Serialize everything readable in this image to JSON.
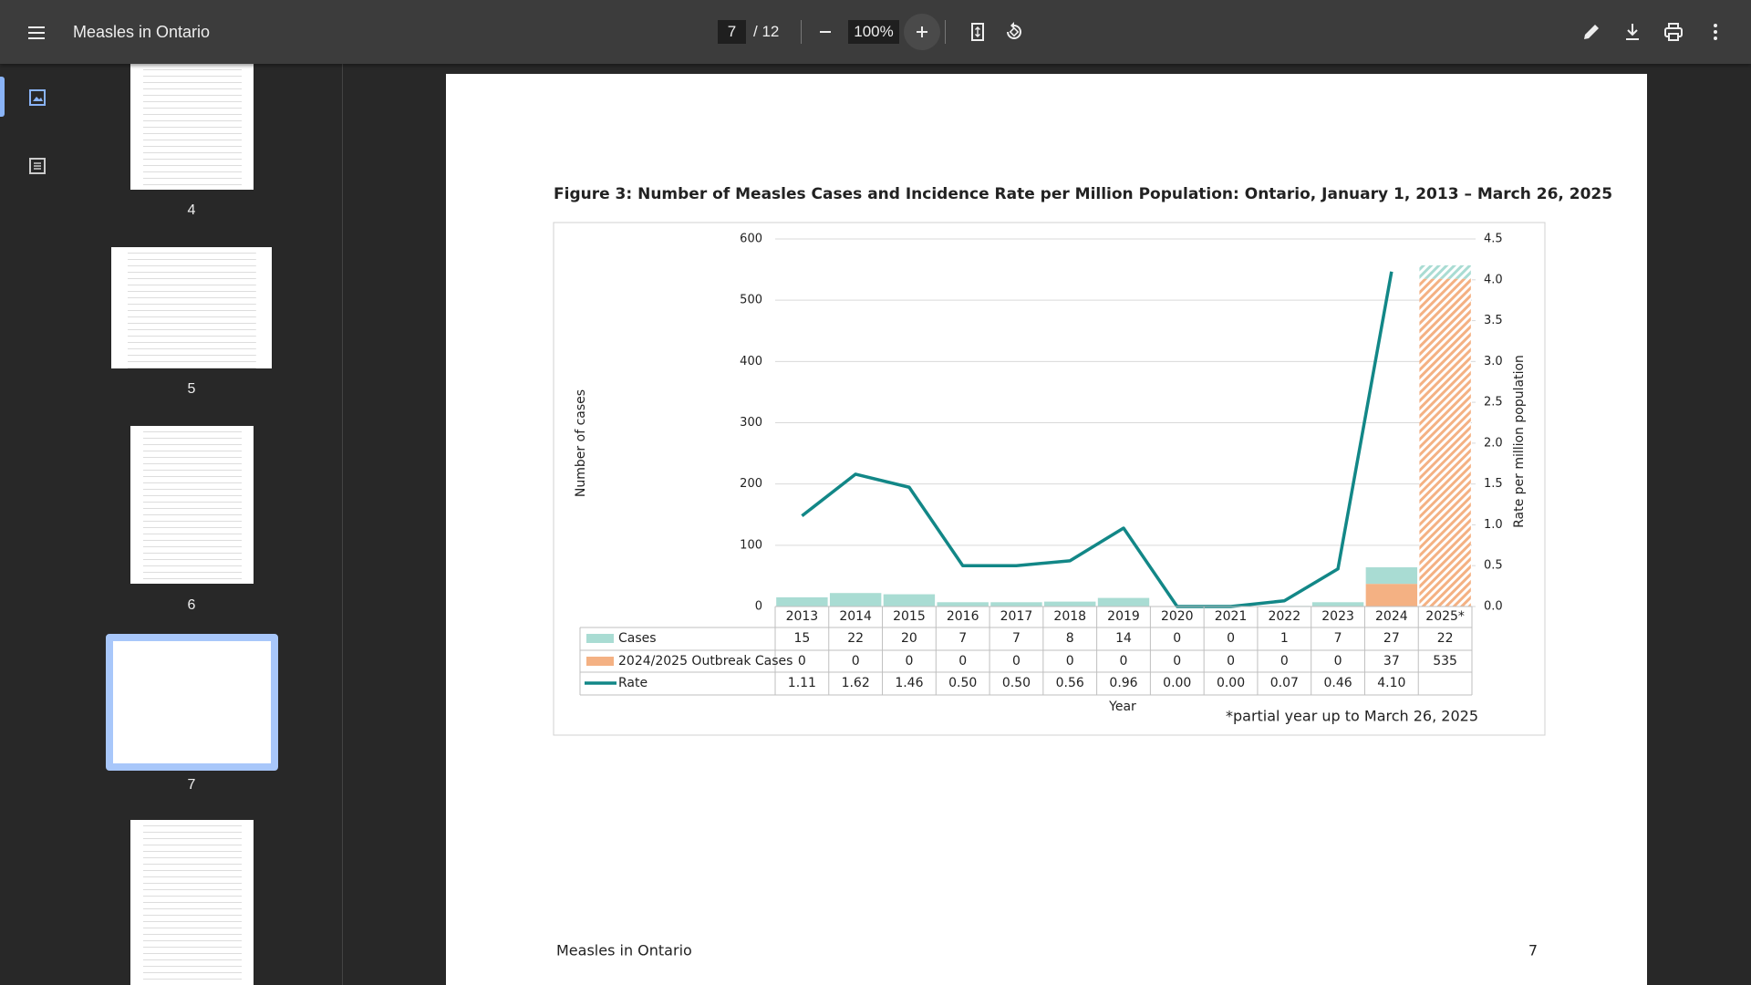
{
  "toolbar": {
    "title": "Measles in Ontario",
    "page_current": "7",
    "page_total": "/ 12",
    "zoom": "100%"
  },
  "thumbnails": [
    {
      "label": "4"
    },
    {
      "label": "5"
    },
    {
      "label": "6"
    },
    {
      "label": "7"
    }
  ],
  "chart_data": {
    "type": "combo",
    "title": "Figure 3: Number of Measles Cases and Incidence Rate per Million Population: Ontario, January 1, 2013 – March 26, 2025",
    "x_label": "Year",
    "y_label": "Number of cases",
    "y2_label": "Rate per million population",
    "footnote": "*partial year up to March 26, 2025",
    "categories": [
      "2013",
      "2014",
      "2015",
      "2016",
      "2017",
      "2018",
      "2019",
      "2020",
      "2021",
      "2022",
      "2023",
      "2024",
      "2025*"
    ],
    "series": [
      {
        "name": "Cases",
        "color": "#a9dcd3",
        "values": [
          15,
          22,
          20,
          7,
          7,
          8,
          14,
          0,
          0,
          1,
          7,
          27,
          22
        ]
      },
      {
        "name": "2024/2025 Outbreak Cases",
        "color": "#f4b183",
        "values": [
          0,
          0,
          0,
          0,
          0,
          0,
          0,
          0,
          0,
          0,
          0,
          37,
          535
        ]
      },
      {
        "name": "Rate",
        "color": "#128787",
        "axis": "y2",
        "type": "line",
        "values": [
          1.11,
          1.62,
          1.46,
          0.5,
          0.5,
          0.56,
          0.96,
          0,
          0,
          0.07,
          0.46,
          4.1,
          null
        ],
        "value_labels": [
          "1.11",
          "1.62",
          "1.46",
          "0.50",
          "0.50",
          "0.56",
          "0.96",
          "0.00",
          "0.00",
          "0.07",
          "0.46",
          "4.10",
          null
        ]
      }
    ],
    "ylim": [
      0,
      600
    ],
    "yticks": [
      0,
      100,
      200,
      300,
      400,
      500,
      600
    ],
    "y2lim": [
      0,
      4.5
    ],
    "y2ticks": [
      {
        "value": 0,
        "label": "0.0"
      },
      0.5,
      {
        "value": 1,
        "label": "1.0"
      },
      1.5,
      {
        "value": 2,
        "label": "2.0"
      },
      2.5,
      {
        "value": 3,
        "label": "3.0"
      },
      3.5,
      {
        "value": 4,
        "label": "4.0"
      },
      4.5
    ],
    "grid": true
  },
  "footer": {
    "left": "Measles in Ontario",
    "page_number": "7"
  }
}
